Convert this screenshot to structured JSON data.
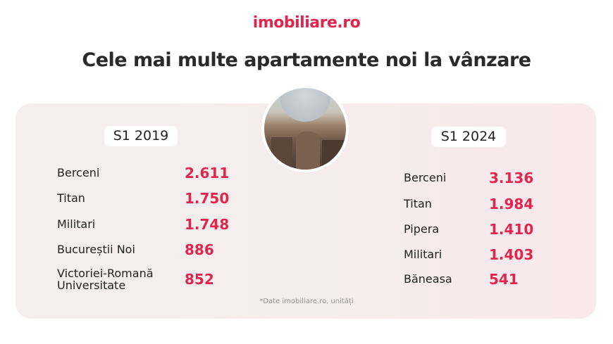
{
  "brand": {
    "logo": "imobiliare.ro",
    "accent_color": "#e0264f"
  },
  "title": "Cele mai multe apartamente noi la vânzare",
  "photo": {
    "icon": "city-aerial-photo"
  },
  "left": {
    "period": "S1 2019",
    "rows": [
      {
        "name": "Berceni",
        "value": "2.611"
      },
      {
        "name": "Titan",
        "value": "1.750"
      },
      {
        "name": "Militari",
        "value": "1.748"
      },
      {
        "name": "Bucureștii Noi",
        "value": "886"
      },
      {
        "name": "Victoriei-Romană\nUniversitate",
        "value": "852"
      }
    ]
  },
  "right": {
    "period": "S1 2024",
    "rows": [
      {
        "name": "Berceni",
        "value": "3.136"
      },
      {
        "name": "Titan",
        "value": "1.984"
      },
      {
        "name": "Pipera",
        "value": "1.410"
      },
      {
        "name": "Militari",
        "value": "1.403"
      },
      {
        "name": "Băneasa",
        "value": "541"
      }
    ]
  },
  "footnote": "*Date imobiliare.ro, unități"
}
